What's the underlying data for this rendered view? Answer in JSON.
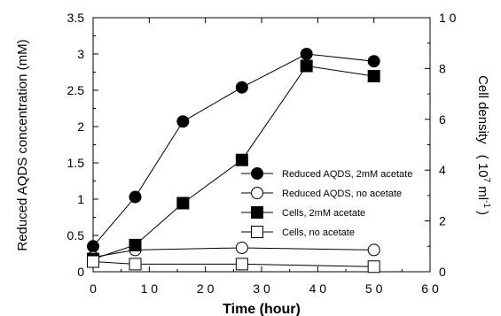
{
  "chart_data": {
    "type": "line",
    "title": "",
    "xlabel": "Time (hour)",
    "ylabel_left": "Reduced AQDS concentration (mM)",
    "ylabel_right": "Cell density",
    "ylabel_right_unit": "( 10",
    "ylabel_right_exp": "7",
    "ylabel_right_unit2": "ml",
    "ylabel_right_exp2": "-1",
    "ylabel_right_close": ")",
    "xlim": [
      0,
      60
    ],
    "ylim_left": [
      0,
      3.5
    ],
    "ylim_right": [
      0,
      10
    ],
    "xticks": [
      "0",
      "1 0",
      "2 0",
      "3 0",
      "4 0",
      "5 0",
      "6 0"
    ],
    "xtick_values": [
      0,
      10,
      20,
      30,
      40,
      50,
      60
    ],
    "yticks_left": [
      "0",
      "0.5",
      "1",
      "1.5",
      "2",
      "2.5",
      "3",
      "3.5"
    ],
    "ytick_left_values": [
      0,
      0.5,
      1,
      1.5,
      2,
      2.5,
      3,
      3.5
    ],
    "yticks_right": [
      "0",
      "2",
      "4",
      "6",
      "8",
      "1 0"
    ],
    "ytick_right_values": [
      0,
      2,
      4,
      6,
      8,
      10
    ],
    "legend_position": "lower-right",
    "series": [
      {
        "name": "Reduced AQDS, 2mM acetate",
        "axis": "left",
        "marker": "circle",
        "filled": true,
        "x": [
          0,
          7.5,
          16,
          26.5,
          38,
          50
        ],
        "y": [
          0.35,
          1.03,
          2.07,
          2.54,
          3.0,
          2.9
        ]
      },
      {
        "name": "Reduced AQDS, no acetate",
        "axis": "left",
        "marker": "circle",
        "filled": false,
        "x": [
          0,
          7.5,
          26.5,
          50
        ],
        "y": [
          0.2,
          0.3,
          0.33,
          0.3
        ]
      },
      {
        "name": "Cells, 2mM acetate",
        "axis": "right",
        "marker": "square",
        "filled": true,
        "x": [
          0,
          7.5,
          16,
          26.5,
          38,
          50
        ],
        "y": [
          0.5,
          1.05,
          2.7,
          4.4,
          8.1,
          7.7
        ]
      },
      {
        "name": "Cells, no acetate",
        "axis": "right",
        "marker": "square",
        "filled": false,
        "x": [
          0,
          7.5,
          26.5,
          50
        ],
        "y": [
          0.4,
          0.3,
          0.3,
          0.2
        ]
      }
    ]
  }
}
